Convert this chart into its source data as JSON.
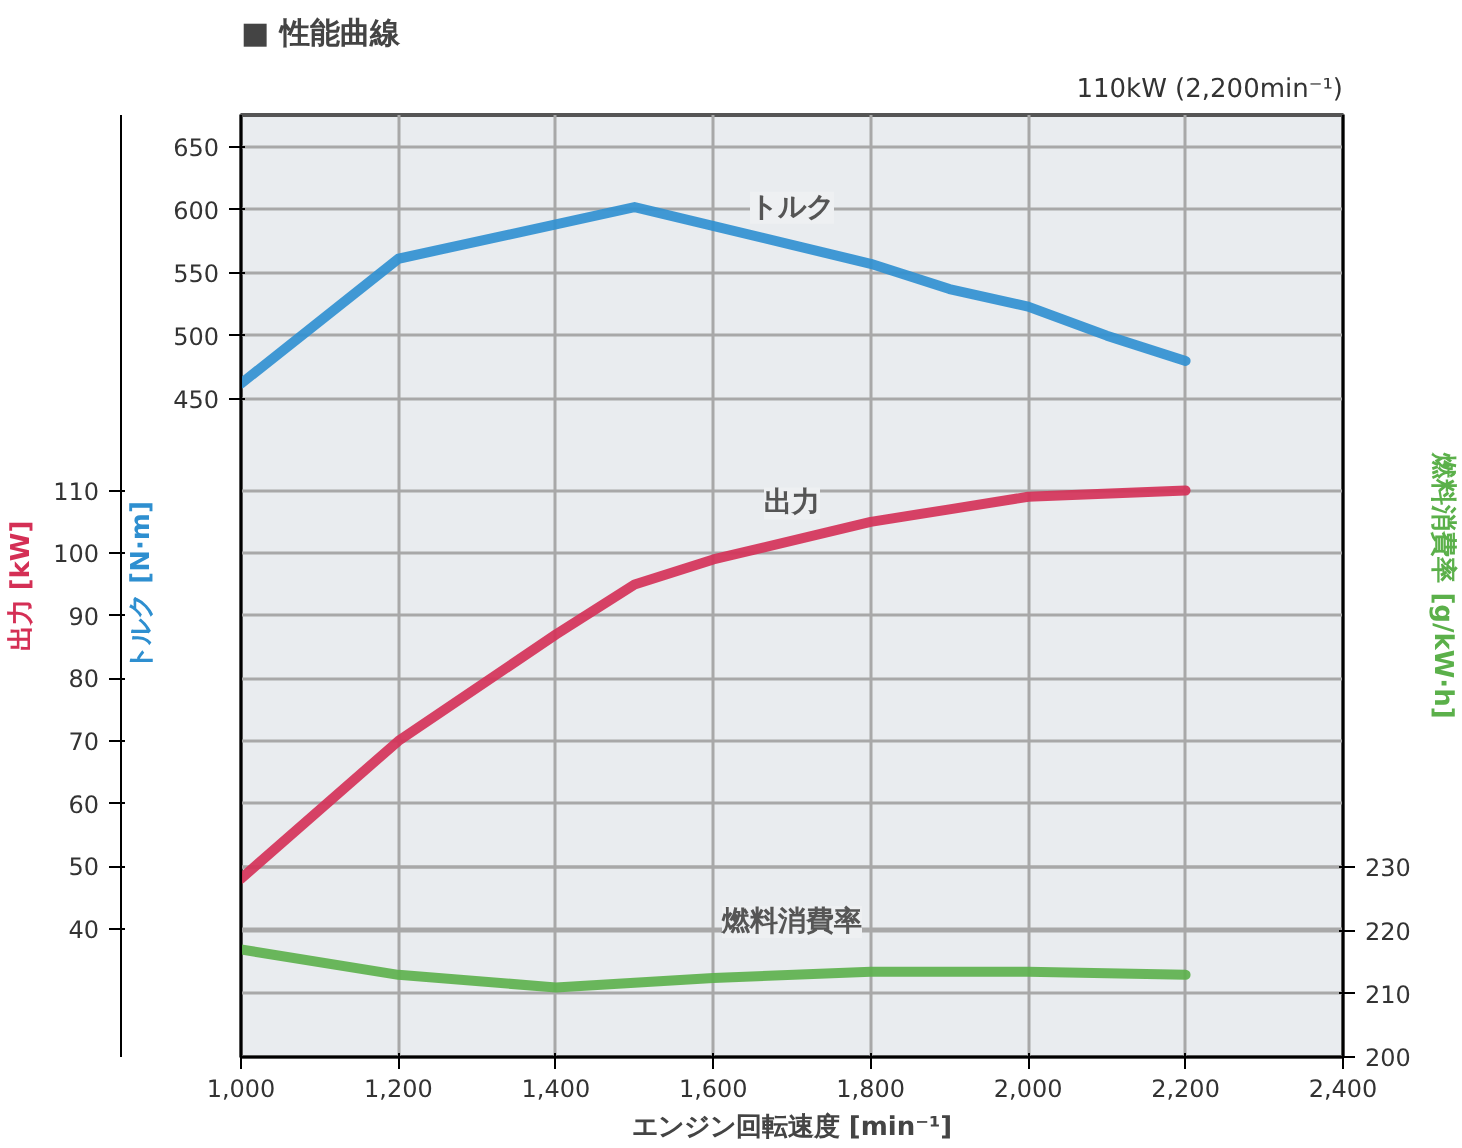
{
  "chart_data": {
    "type": "line",
    "title": "■ 性能曲線",
    "subtitle": "110kW (2,200min⁻¹)",
    "xlabel": "エンジン回転速度 [min⁻¹]",
    "ylabel": "トルク [N·m]",
    "y2label": "出力 [kW]",
    "y3label": "燃料消費率 [g/kW·h]",
    "xlim": [
      1000,
      2400
    ],
    "xticks": [
      {
        "value": 1000,
        "label": "1,000"
      },
      {
        "value": 1200,
        "label": "1,200"
      },
      {
        "value": 1400,
        "label": "1,400"
      },
      {
        "value": 1600,
        "label": "1,600"
      },
      {
        "value": 1800,
        "label": "1,800"
      },
      {
        "value": 2000,
        "label": "2,000"
      },
      {
        "value": 2200,
        "label": "2,200"
      },
      {
        "value": 2400,
        "label": "2,400"
      }
    ],
    "ylim": [
      -72,
      675
    ],
    "yticks": [
      450,
      500,
      550,
      600,
      650
    ],
    "y2lim": [
      19.5,
      170
    ],
    "y2ticks": [
      40,
      50,
      60,
      70,
      80,
      90,
      100,
      110
    ],
    "y3lim": [
      200,
      349
    ],
    "y3ticks": [
      200,
      210,
      220,
      230
    ],
    "grid": true,
    "marker": "none",
    "line_style": "solid",
    "series": [
      {
        "name": "トルク",
        "color": "#2e8fd0",
        "x": [
          1000,
          1200,
          1500,
          1700,
          1800,
          1900,
          2000,
          2100,
          2200
        ],
        "values": [
          462,
          561,
          602,
          572,
          557,
          537,
          523,
          500,
          480
        ]
      },
      {
        "name": "出力",
        "color": "#d42f55",
        "axis": "y2",
        "x": [
          1000,
          1200,
          1400,
          1500,
          1600,
          1800,
          1900,
          2000,
          2200
        ],
        "values": [
          48,
          70,
          87,
          95,
          99,
          105,
          107,
          109,
          110
        ]
      },
      {
        "name": "燃料消費率",
        "color": "#5bb04a",
        "axis": "y3",
        "x": [
          1000,
          1200,
          1400,
          1600,
          1800,
          2000,
          2200
        ],
        "values": [
          217,
          213,
          211,
          212.5,
          213.5,
          213.5,
          213
        ]
      }
    ]
  }
}
